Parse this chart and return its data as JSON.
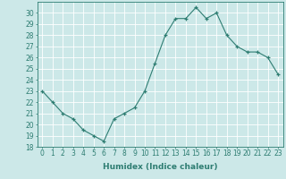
{
  "x": [
    0,
    1,
    2,
    3,
    4,
    5,
    6,
    7,
    8,
    9,
    10,
    11,
    12,
    13,
    14,
    15,
    16,
    17,
    18,
    19,
    20,
    21,
    22,
    23
  ],
  "y": [
    23.0,
    22.0,
    21.0,
    20.5,
    19.5,
    19.0,
    18.5,
    20.5,
    21.0,
    21.5,
    23.0,
    25.5,
    28.0,
    29.5,
    29.5,
    30.5,
    29.5,
    30.0,
    28.0,
    27.0,
    26.5,
    26.5,
    26.0,
    24.5
  ],
  "xlabel": "Humidex (Indice chaleur)",
  "ylim": [
    18,
    31
  ],
  "xlim": [
    -0.5,
    23.5
  ],
  "yticks": [
    18,
    19,
    20,
    21,
    22,
    23,
    24,
    25,
    26,
    27,
    28,
    29,
    30
  ],
  "xticks": [
    0,
    1,
    2,
    3,
    4,
    5,
    6,
    7,
    8,
    9,
    10,
    11,
    12,
    13,
    14,
    15,
    16,
    17,
    18,
    19,
    20,
    21,
    22,
    23
  ],
  "line_color": "#2e7d72",
  "marker": "+",
  "bg_color": "#cce8e8",
  "grid_color": "#ffffff",
  "tick_fontsize": 5.5,
  "xlabel_fontsize": 6.5
}
